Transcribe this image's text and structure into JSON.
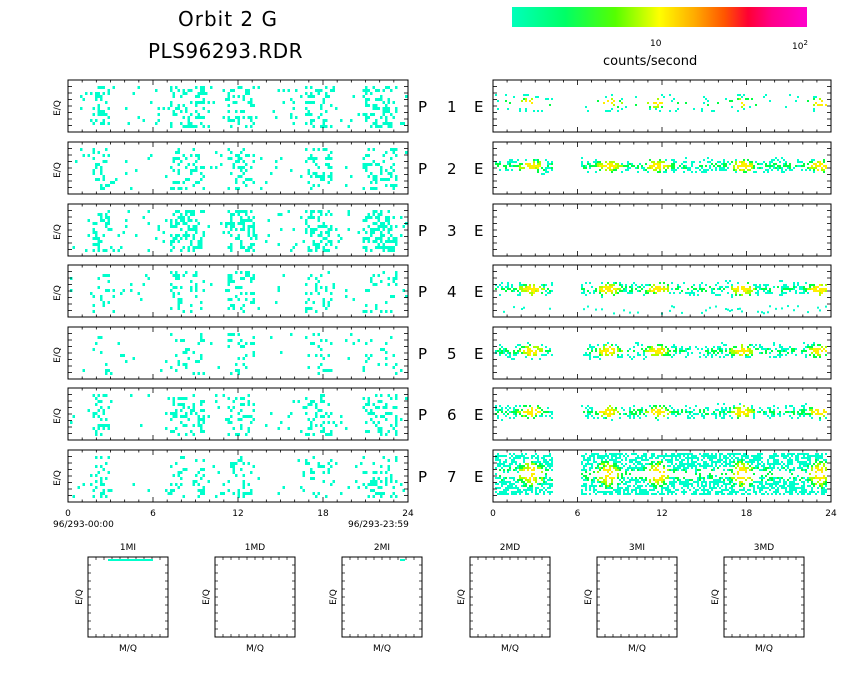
{
  "header": {
    "title_line1": "Orbit 2 G",
    "title_line2": "PLS96293.RDR"
  },
  "colorbar": {
    "label": "counts/second",
    "tick_10": "10",
    "tick_100_base": "10",
    "tick_100_exp": "2"
  },
  "chart_data": [
    {
      "type": "heatmap",
      "description_key": "left_panels",
      "xlabel": "",
      "ylabel": "E/Q",
      "xlim": [
        0,
        24
      ],
      "xticks": [
        0,
        6,
        12,
        18,
        24
      ],
      "x_start_label": "96/293-00:00",
      "x_end_label": "96/293-23:59",
      "rows": [
        "P 1",
        "P 2",
        "P 3",
        "P 4",
        "P 5",
        "P 6",
        "P 7"
      ],
      "active_hours": [
        [
          1.5,
          2.8
        ],
        [
          7.0,
          9.5
        ],
        [
          11.0,
          13.0
        ],
        [
          16.5,
          18.5
        ],
        [
          20.5,
          23.0
        ]
      ],
      "intensity": "low (cyan, ~1-3 counts/second)"
    },
    {
      "type": "heatmap",
      "description_key": "right_panels",
      "ylabel": "E",
      "xlim": [
        0,
        24
      ],
      "xticks": [
        0,
        6,
        12,
        18,
        24
      ],
      "rows": [
        "1",
        "2",
        "3",
        "4",
        "5",
        "6",
        "7"
      ],
      "active_hours": [
        [
          0,
          4
        ],
        [
          6,
          23.5
        ]
      ],
      "peak_hours": [
        2.5,
        8,
        11.5,
        17.5,
        23
      ],
      "intensity": "cyan to yellow-green (~1-10 counts/second)"
    },
    {
      "type": "heatmap",
      "description_key": "mass_panels",
      "xlabel": "M/Q",
      "ylabel": "E/Q",
      "panels": [
        "1MI",
        "1MD",
        "2MI",
        "2MD",
        "3MI",
        "3MD"
      ]
    }
  ],
  "labels": {
    "eq": "E/Q",
    "mq": "M/Q",
    "e": "E",
    "p": "P",
    "rows": [
      "1",
      "2",
      "3",
      "4",
      "5",
      "6",
      "7"
    ],
    "ticks": [
      "0",
      "6",
      "12",
      "18",
      "24"
    ],
    "start": "96/293-00:00",
    "end": "96/293-23:59",
    "mass_titles": [
      "1MI",
      "1MD",
      "2MI",
      "2MD",
      "3MI",
      "3MD"
    ]
  },
  "colors": {
    "cyan": "#00ffcc",
    "green": "#00ff44",
    "yellowgreen": "#aaff00",
    "yellow": "#ffee00"
  }
}
